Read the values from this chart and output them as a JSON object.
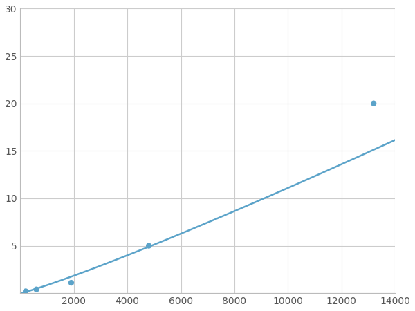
{
  "x_points": [
    200,
    600,
    1900,
    4800,
    13200
  ],
  "y_points": [
    0.2,
    0.4,
    1.1,
    5.0,
    20.0
  ],
  "line_color": "#5ba3c9",
  "marker_color": "#5ba3c9",
  "marker_size": 6,
  "line_width": 1.8,
  "xlim": [
    0,
    14000
  ],
  "ylim": [
    0,
    30
  ],
  "xticks": [
    0,
    2000,
    4000,
    6000,
    8000,
    10000,
    12000,
    14000
  ],
  "yticks": [
    0,
    5,
    10,
    15,
    20,
    25,
    30
  ],
  "grid_color": "#cccccc",
  "background_color": "#ffffff",
  "tick_label_fontsize": 10
}
